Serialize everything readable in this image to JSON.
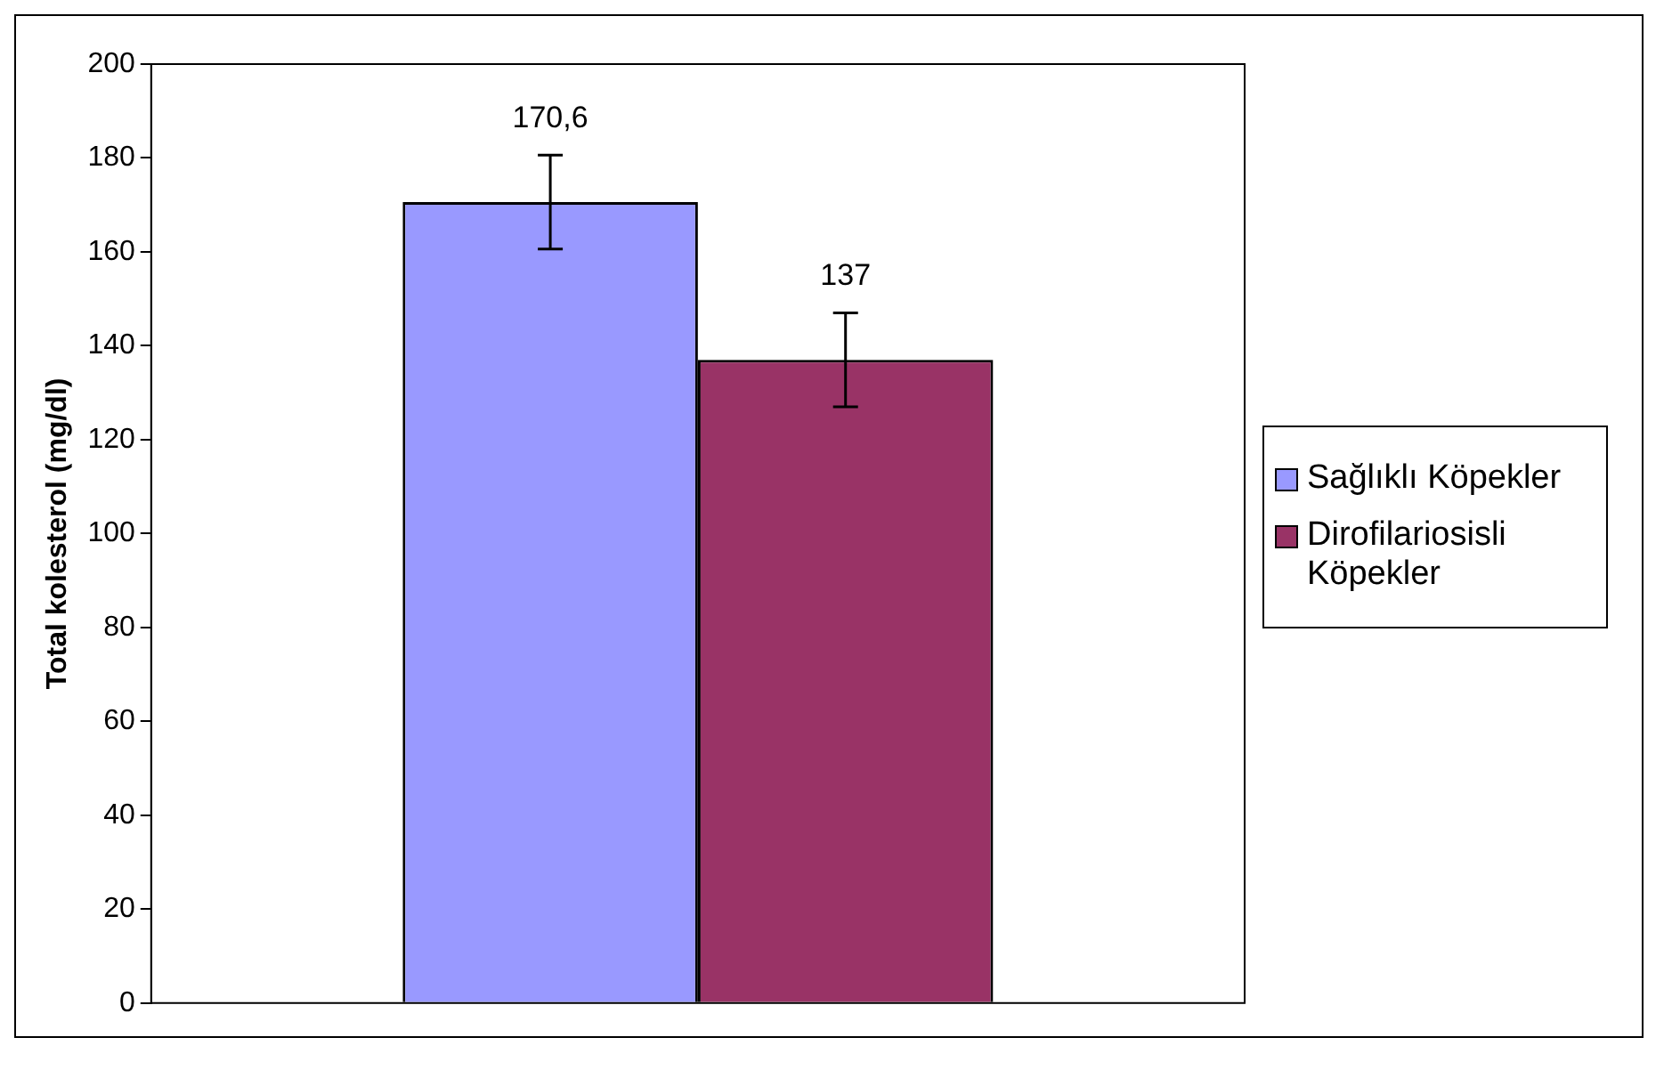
{
  "chart_data": {
    "type": "bar",
    "ylabel": "Total kolesterol (mg/dl)",
    "categories": [
      null
    ],
    "series": [
      {
        "name": "Sağlıklı Köpekler",
        "color": "#9999ff",
        "values": [
          170.6
        ],
        "errors": [
          10
        ],
        "value_labels": [
          "170,6"
        ]
      },
      {
        "name": "Dirofilariosisli Köpekler",
        "color": "#993366",
        "values": [
          137
        ],
        "errors": [
          10
        ],
        "value_labels": [
          "137"
        ]
      }
    ],
    "ylim": [
      0,
      200
    ],
    "yticks": [
      0,
      20,
      40,
      60,
      80,
      100,
      120,
      140,
      160,
      180,
      200
    ],
    "grid": false,
    "legend": "right"
  }
}
